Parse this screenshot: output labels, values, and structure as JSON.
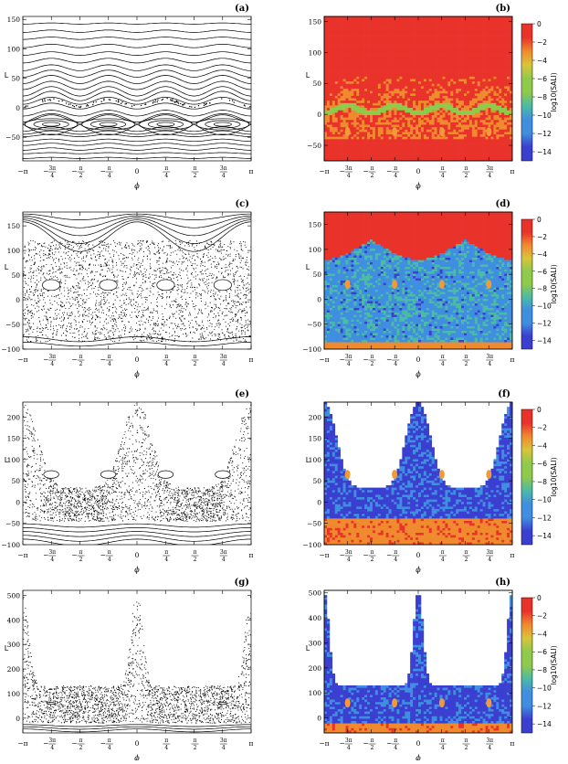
{
  "figure": {
    "colors": {
      "axis": "#000000",
      "orbit": "#000000",
      "regular": "#e8452b",
      "sticky": "#f29a3a",
      "chaotic_mid": "#4a86d8",
      "chaotic_deep": "#4a3fd0"
    }
  },
  "chart_data": [
    {
      "panel": "(a)",
      "type": "scatter",
      "kind": "poincare",
      "xlabel": "ϕ",
      "ylabel": "L",
      "xlim": [
        -3.1416,
        3.1416
      ],
      "ylim": [
        -90,
        155
      ],
      "yticks": [
        -50,
        0,
        50,
        100,
        150
      ],
      "y_tick_labels": [
        "−50",
        "0",
        "50",
        "100",
        "150"
      ],
      "x_tick_labels": [
        "−π",
        "−3π/4",
        "−π/2",
        "−π/4",
        "0",
        "π/4",
        "π/2",
        "3π/4",
        "π"
      ],
      "curve_levels": [
        -85,
        -77,
        -70,
        -62,
        -55,
        -47,
        -42,
        -36,
        -18,
        -9,
        3,
        12,
        20,
        28,
        38,
        48,
        58,
        68,
        80,
        92,
        105,
        118,
        130,
        143
      ],
      "curve_amplitude": [
        1,
        1,
        2,
        2,
        2,
        2,
        3,
        4,
        6,
        5,
        5,
        6,
        8,
        8,
        7,
        7,
        6,
        5,
        4,
        3,
        3,
        2,
        2,
        1
      ],
      "island_centers_phi": [
        -2.36,
        -0.79,
        0.79,
        2.36
      ],
      "island_center_L": -28,
      "island_radius_L": [
        4,
        8,
        12
      ]
    },
    {
      "panel": "(b)",
      "type": "heatmap",
      "kind": "sali",
      "xlabel": "ϕ",
      "ylabel": "L",
      "xlim": [
        -3.1416,
        3.1416
      ],
      "ylim": [
        -75,
        158
      ],
      "yticks": [
        -50,
        0,
        50,
        100,
        150
      ],
      "y_tick_labels": [
        "−50",
        "0",
        "50",
        "100",
        "150"
      ],
      "x_tick_labels": [
        "−π",
        "−3π/4",
        "−π/2",
        "−π/4",
        "0",
        "π/4",
        "π/2",
        "3π/4",
        "π"
      ],
      "colorbar_label": "log10(SALI)",
      "colorbar_ticks": [
        0,
        -2,
        -4,
        -6,
        -8,
        -10,
        -12,
        -14
      ],
      "colorbar_tick_labels": [
        "0",
        "−2",
        "−4",
        "−6",
        "−8",
        "−10",
        "−12",
        "−14"
      ],
      "colorbar_range": [
        -15,
        0
      ],
      "chaotic_band_L": [
        -35,
        35
      ],
      "white_top_L": null,
      "white_bottom_L": null
    },
    {
      "panel": "(c)",
      "type": "scatter",
      "kind": "poincare",
      "xlabel": "ϕ",
      "ylabel": "L",
      "xlim": [
        -3.1416,
        3.1416
      ],
      "ylim": [
        -100,
        178
      ],
      "yticks": [
        -100,
        -50,
        0,
        50,
        100,
        150
      ],
      "y_tick_labels": [
        "−100",
        "−50",
        "0",
        "50",
        "100",
        "150"
      ],
      "x_tick_labels": [
        "−π",
        "−3π/4",
        "−π/2",
        "−π/4",
        "0",
        "π/4",
        "π/2",
        "3π/4",
        "π"
      ],
      "top_curve_levels": [
        172,
        162,
        152,
        142,
        132
      ],
      "chaos_range_L": [
        -85,
        120
      ],
      "bottom_curve_levels": [
        -90,
        -80
      ],
      "island_centers_phi": [
        -2.36,
        -0.79,
        0.79,
        2.36
      ],
      "island_center_L": 30,
      "island_radius_L": [
        6,
        11
      ]
    },
    {
      "panel": "(d)",
      "type": "heatmap",
      "kind": "sali",
      "xlabel": "ϕ",
      "ylabel": "L",
      "xlim": [
        -3.1416,
        3.1416
      ],
      "ylim": [
        -100,
        175
      ],
      "yticks": [
        -100,
        -50,
        0,
        50,
        100,
        150
      ],
      "y_tick_labels": [
        "−100",
        "−50",
        "0",
        "50",
        "100",
        "150"
      ],
      "x_tick_labels": [
        "−π",
        "−3π/4",
        "−π/2",
        "−π/4",
        "0",
        "π/4",
        "π/2",
        "3π/4",
        "π"
      ],
      "colorbar_label": "log10(SALI)",
      "colorbar_ticks": [
        0,
        -2,
        -4,
        -6,
        -8,
        -10,
        -12,
        -14
      ],
      "colorbar_tick_labels": [
        "0",
        "−2",
        "−4",
        "−6",
        "−8",
        "−10",
        "−12",
        "−14"
      ],
      "colorbar_range": [
        -15,
        0
      ],
      "chaotic_band_L": [
        -88,
        118
      ],
      "white_top_L": null,
      "white_bottom_L": null
    },
    {
      "panel": "(e)",
      "type": "scatter",
      "kind": "poincare",
      "xlabel": "ϕ",
      "ylabel": "L",
      "xlim": [
        -3.1416,
        3.1416
      ],
      "ylim": [
        -100,
        235
      ],
      "yticks": [
        -100,
        -50,
        0,
        50,
        100,
        150,
        200
      ],
      "y_tick_labels": [
        "−100",
        "−50",
        "0",
        "50",
        "100",
        "150",
        "200"
      ],
      "x_tick_labels": [
        "−π",
        "−3π/4",
        "−π/2",
        "−π/4",
        "0",
        "π/4",
        "π/2",
        "3π/4",
        "π"
      ],
      "top_curve_levels": [],
      "chaos_range_L": [
        -45,
        230
      ],
      "bottom_curve_levels": [
        -55,
        -65,
        -75,
        -85,
        -95
      ],
      "island_centers_phi": [
        -2.36,
        -0.79,
        0.79,
        2.36
      ],
      "island_center_L": 65,
      "island_radius_L": [
        5,
        9
      ]
    },
    {
      "panel": "(f)",
      "type": "heatmap",
      "kind": "sali",
      "xlabel": "ϕ",
      "ylabel": "L",
      "xlim": [
        -3.1416,
        3.1416
      ],
      "ylim": [
        -100,
        235
      ],
      "yticks": [
        -100,
        -50,
        0,
        50,
        100,
        150,
        200
      ],
      "y_tick_labels": [
        "−100",
        "−50",
        "0",
        "50",
        "100",
        "150",
        "200"
      ],
      "x_tick_labels": [
        "−π",
        "−3π/4",
        "−π/2",
        "−π/4",
        "0",
        "π/4",
        "π/2",
        "3π/4",
        "π"
      ],
      "colorbar_label": "log10(SALI)",
      "colorbar_ticks": [
        0,
        -2,
        -4,
        -6,
        -8,
        -10,
        -12,
        -14
      ],
      "colorbar_tick_labels": [
        "0",
        "−2",
        "−4",
        "−6",
        "−8",
        "−10",
        "−12",
        "−14"
      ],
      "colorbar_range": [
        -15,
        0
      ],
      "chaotic_band_L": [
        -40,
        230
      ],
      "white_top_L": true,
      "white_bottom_L": null
    },
    {
      "panel": "(g)",
      "type": "scatter",
      "kind": "poincare",
      "xlabel": "ϕ",
      "ylabel": "L",
      "xlim": [
        -3.1416,
        3.1416
      ],
      "ylim": [
        -60,
        520
      ],
      "yticks": [
        0,
        100,
        200,
        300,
        400,
        500
      ],
      "y_tick_labels": [
        "0",
        "100",
        "200",
        "300",
        "400",
        "500"
      ],
      "x_tick_labels": [
        "−π",
        "−3π/4",
        "−π/2",
        "−π/4",
        "0",
        "π/4",
        "π/2",
        "3π/4",
        "π"
      ],
      "top_curve_levels": [],
      "chaos_range_L": [
        -20,
        500
      ],
      "bottom_curve_levels": [
        -30,
        -40,
        -50
      ],
      "island_centers_phi": [
        -2.36,
        2.36
      ],
      "island_center_L": 60,
      "island_radius_L": [
        4
      ]
    },
    {
      "panel": "(h)",
      "type": "heatmap",
      "kind": "sali",
      "xlabel": "ϕ",
      "ylabel": "L",
      "xlim": [
        -3.1416,
        3.1416
      ],
      "ylim": [
        -60,
        510
      ],
      "yticks": [
        0,
        100,
        200,
        300,
        400,
        500
      ],
      "y_tick_labels": [
        "0",
        "100",
        "200",
        "300",
        "400",
        "500"
      ],
      "x_tick_labels": [
        "−π",
        "−3π/4",
        "−π/2",
        "−π/4",
        "0",
        "π/4",
        "π/2",
        "3π/4",
        "π"
      ],
      "colorbar_label": "log10(SALI)",
      "colorbar_ticks": [
        0,
        -2,
        -4,
        -6,
        -8,
        -10,
        -12,
        -14
      ],
      "colorbar_tick_labels": [
        "0",
        "−2",
        "−4",
        "−6",
        "−8",
        "−10",
        "−12",
        "−14"
      ],
      "colorbar_range": [
        -15,
        0
      ],
      "chaotic_band_L": [
        -25,
        500
      ],
      "white_top_L": true,
      "white_bottom_L": null
    }
  ]
}
